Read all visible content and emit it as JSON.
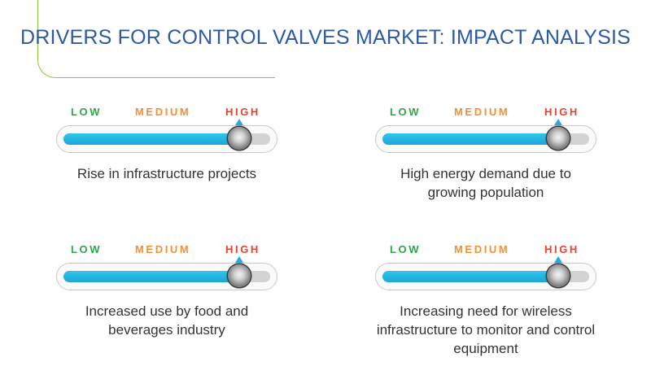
{
  "title": "DRIVERS FOR CONTROL VALVES MARKET: IMPACT ANALYSIS",
  "scale_labels": {
    "low": "LOW",
    "medium": "MEDIUM",
    "high": "HIGH"
  },
  "colors": {
    "low": "#2aa84a",
    "medium": "#f0913a",
    "high": "#e8412c",
    "title": "#2b5aa6",
    "fill": "#1da5d8",
    "accent_line": "#8dc63f"
  },
  "chart_data": {
    "type": "bar",
    "categories": [
      "Rise in infrastructure projects",
      "High energy demand due to growing population",
      "Increased use by food and beverages industry",
      "Increasing need for wireless infrastructure to monitor and control equipment"
    ],
    "values": [
      0.85,
      0.85,
      0.85,
      0.85
    ],
    "ylim": [
      0,
      1
    ]
  },
  "drivers": [
    {
      "caption": "Rise in infrastructure projects",
      "impact_level": 0.85
    },
    {
      "caption": "High energy demand due to growing population",
      "impact_level": 0.85
    },
    {
      "caption": "Increased use by food and beverages industry",
      "impact_level": 0.85
    },
    {
      "caption": "Increasing need for wireless infrastructure to monitor and control equipment",
      "impact_level": 0.85
    }
  ]
}
